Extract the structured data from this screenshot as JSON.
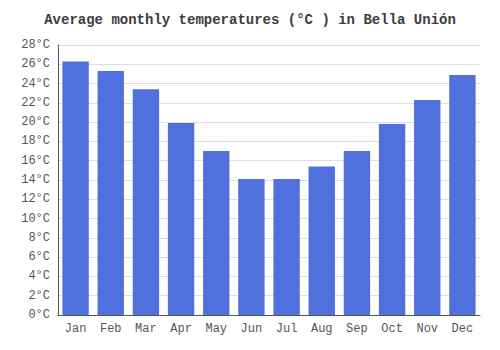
{
  "chart_data": {
    "type": "bar",
    "title": "Average monthly temperatures (°C ) in Bella Unión",
    "categories": [
      "Jan",
      "Feb",
      "Mar",
      "Apr",
      "May",
      "Jun",
      "Jul",
      "Aug",
      "Sep",
      "Oct",
      "Nov",
      "Dec"
    ],
    "values": [
      26.3,
      25.3,
      23.4,
      19.9,
      17.0,
      14.1,
      14.1,
      15.4,
      17.0,
      19.8,
      22.3,
      24.9
    ],
    "ylim": [
      0,
      28
    ],
    "yticks": [
      {
        "value": 0,
        "label": "0°C"
      },
      {
        "value": 2,
        "label": "2°C"
      },
      {
        "value": 4,
        "label": "4°C"
      },
      {
        "value": 6,
        "label": "6°C"
      },
      {
        "value": 8,
        "label": "8°C"
      },
      {
        "value": 10,
        "label": "10°C"
      },
      {
        "value": 12,
        "label": "12°C"
      },
      {
        "value": 14,
        "label": "14°C"
      },
      {
        "value": 16,
        "label": "16°C"
      },
      {
        "value": 18,
        "label": "18°C"
      },
      {
        "value": 20,
        "label": "20°C"
      },
      {
        "value": 22,
        "label": "22°C"
      },
      {
        "value": 24,
        "label": "24°C"
      },
      {
        "value": 26,
        "label": "26°C"
      },
      {
        "value": 28,
        "label": "28°C"
      }
    ],
    "grid": true
  }
}
